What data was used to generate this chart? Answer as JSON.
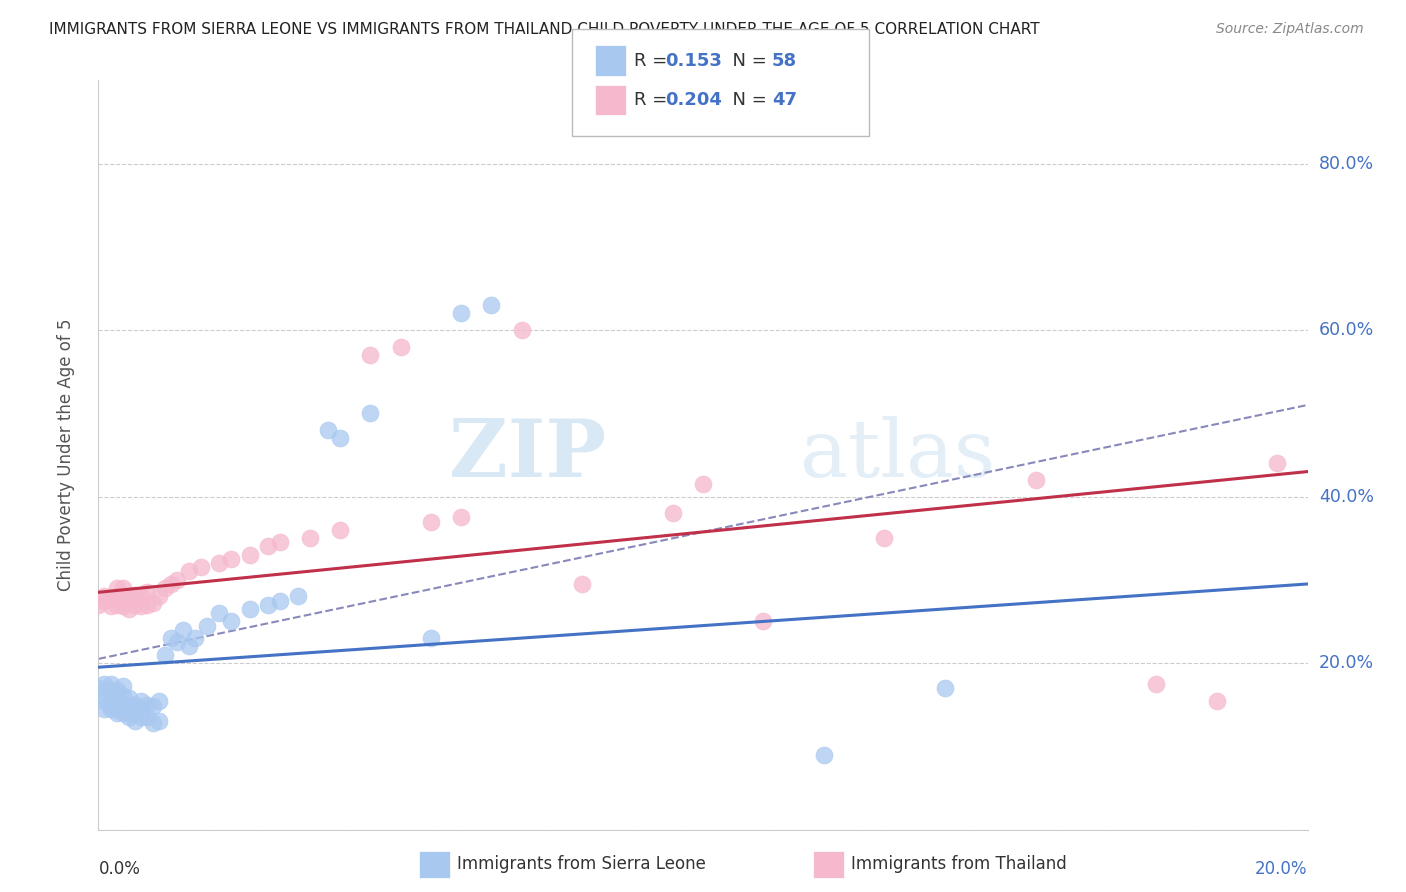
{
  "title": "IMMIGRANTS FROM SIERRA LEONE VS IMMIGRANTS FROM THAILAND CHILD POVERTY UNDER THE AGE OF 5 CORRELATION CHART",
  "source": "Source: ZipAtlas.com",
  "ylabel": "Child Poverty Under the Age of 5",
  "xlim": [
    0.0,
    0.2
  ],
  "ylim": [
    0.0,
    0.9
  ],
  "yticks": [
    0.0,
    0.2,
    0.4,
    0.6,
    0.8
  ],
  "ytick_labels": [
    "",
    "20.0%",
    "40.0%",
    "60.0%",
    "80.0%"
  ],
  "legend_R1": "0.153",
  "legend_N1": "58",
  "legend_R2": "0.204",
  "legend_N2": "47",
  "color_sierra": "#a8c8f0",
  "color_thailand": "#f5b8cc",
  "color_line_sierra": "#4472c4",
  "color_line_thailand": "#c0304a",
  "color_line_dashed": "#8888bb",
  "watermark_zip": "ZIP",
  "watermark_atlas": "atlas",
  "sierra_x": [
    0.0,
    0.001,
    0.001,
    0.001,
    0.001,
    0.002,
    0.002,
    0.002,
    0.002,
    0.002,
    0.003,
    0.003,
    0.003,
    0.003,
    0.003,
    0.003,
    0.004,
    0.004,
    0.004,
    0.004,
    0.004,
    0.005,
    0.005,
    0.005,
    0.005,
    0.006,
    0.006,
    0.006,
    0.007,
    0.007,
    0.007,
    0.008,
    0.008,
    0.009,
    0.009,
    0.01,
    0.01,
    0.011,
    0.012,
    0.013,
    0.014,
    0.015,
    0.016,
    0.018,
    0.02,
    0.022,
    0.025,
    0.028,
    0.03,
    0.033,
    0.038,
    0.04,
    0.045,
    0.055,
    0.06,
    0.065,
    0.12,
    0.14
  ],
  "sierra_y": [
    0.17,
    0.145,
    0.155,
    0.16,
    0.175,
    0.145,
    0.15,
    0.155,
    0.168,
    0.175,
    0.14,
    0.145,
    0.15,
    0.155,
    0.16,
    0.168,
    0.14,
    0.145,
    0.15,
    0.16,
    0.172,
    0.135,
    0.14,
    0.148,
    0.158,
    0.13,
    0.14,
    0.15,
    0.135,
    0.145,
    0.155,
    0.135,
    0.15,
    0.128,
    0.148,
    0.13,
    0.155,
    0.21,
    0.23,
    0.225,
    0.24,
    0.22,
    0.23,
    0.245,
    0.26,
    0.25,
    0.265,
    0.27,
    0.275,
    0.28,
    0.48,
    0.47,
    0.5,
    0.23,
    0.62,
    0.63,
    0.09,
    0.17
  ],
  "thailand_x": [
    0.0,
    0.001,
    0.001,
    0.002,
    0.002,
    0.003,
    0.003,
    0.003,
    0.004,
    0.004,
    0.004,
    0.005,
    0.005,
    0.006,
    0.006,
    0.007,
    0.007,
    0.008,
    0.008,
    0.009,
    0.01,
    0.011,
    0.012,
    0.013,
    0.015,
    0.017,
    0.02,
    0.022,
    0.025,
    0.028,
    0.03,
    0.035,
    0.04,
    0.045,
    0.05,
    0.055,
    0.06,
    0.07,
    0.08,
    0.095,
    0.1,
    0.11,
    0.13,
    0.155,
    0.175,
    0.185,
    0.195
  ],
  "thailand_y": [
    0.27,
    0.275,
    0.28,
    0.268,
    0.278,
    0.27,
    0.28,
    0.29,
    0.268,
    0.278,
    0.29,
    0.265,
    0.278,
    0.27,
    0.282,
    0.268,
    0.282,
    0.27,
    0.285,
    0.272,
    0.28,
    0.29,
    0.295,
    0.3,
    0.31,
    0.315,
    0.32,
    0.325,
    0.33,
    0.34,
    0.345,
    0.35,
    0.36,
    0.57,
    0.58,
    0.37,
    0.375,
    0.6,
    0.295,
    0.38,
    0.415,
    0.25,
    0.35,
    0.42,
    0.175,
    0.155,
    0.44
  ],
  "line_sierra_x0": 0.0,
  "line_sierra_x1": 0.2,
  "line_sierra_y0": 0.195,
  "line_sierra_y1": 0.295,
  "line_thailand_x0": 0.0,
  "line_thailand_x1": 0.2,
  "line_thailand_y0": 0.285,
  "line_thailand_y1": 0.43,
  "line_dashed_x0": 0.0,
  "line_dashed_x1": 0.2,
  "line_dashed_y0": 0.205,
  "line_dashed_y1": 0.51
}
